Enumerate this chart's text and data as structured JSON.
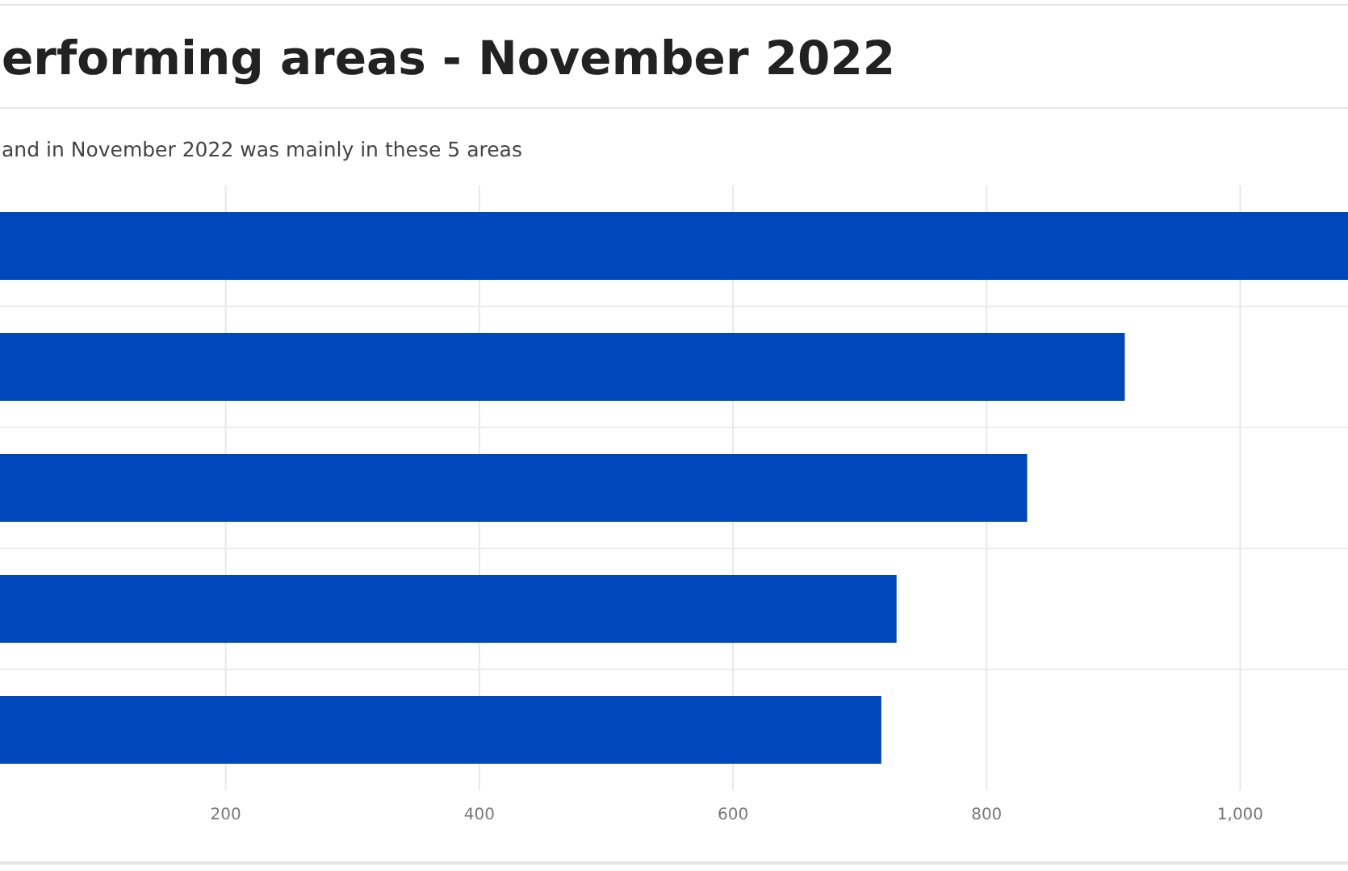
{
  "chart_data": {
    "type": "bar",
    "orientation": "horizontal",
    "title": "erforming areas - November 2022",
    "subtitle": "and in November 2022 was mainly in these 5 areas",
    "categories": [
      null,
      null,
      null,
      null,
      null
    ],
    "values": [
      1085,
      909,
      832,
      729,
      717
    ],
    "color": "#0047bb",
    "xlim": [
      22,
      1085
    ],
    "xticks": [
      200,
      400,
      600,
      800,
      {
        "value": 1000,
        "label": "1,000"
      }
    ],
    "grid": true
  }
}
